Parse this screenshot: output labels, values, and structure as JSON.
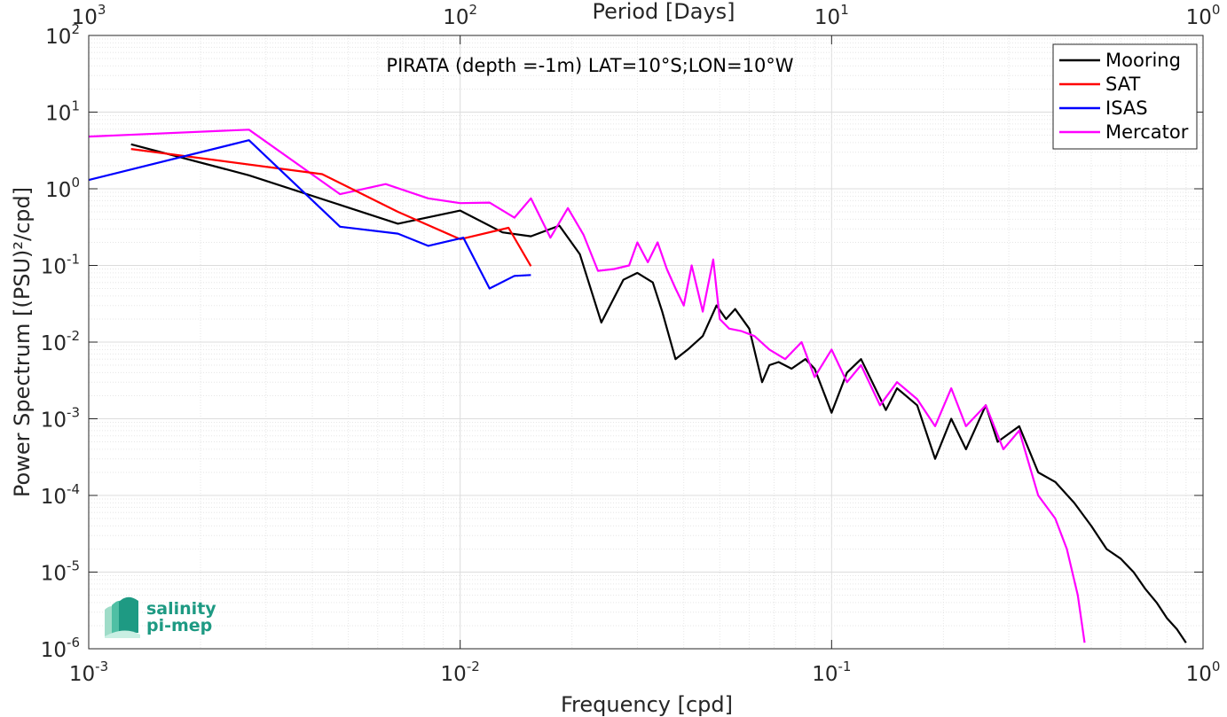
{
  "chart_data": {
    "type": "line",
    "title": "PIRATA (depth =-1m) LAT=10°S;LON=10°W",
    "xlabel": "Frequency [cpd]",
    "ylabel": "Power Spectrum [(PSU)²/cpd]",
    "top_xlabel": "Period [Days]",
    "x_scale": "log",
    "y_scale": "log",
    "xlim": [
      0.001,
      1
    ],
    "ylim": [
      1e-06,
      100
    ],
    "grid": true,
    "legend_position": "top-right",
    "x_ticks": [
      {
        "base": "10",
        "exp": "-3"
      },
      {
        "base": "10",
        "exp": "-2"
      },
      {
        "base": "10",
        "exp": "-1"
      },
      {
        "base": "10",
        "exp": "0"
      }
    ],
    "top_ticks": [
      {
        "base": "10",
        "exp": "3"
      },
      {
        "base": "10",
        "exp": "2"
      },
      {
        "base": "10",
        "exp": "1"
      },
      {
        "base": "10",
        "exp": "0"
      }
    ],
    "y_ticks": [
      {
        "base": "10",
        "exp": "2"
      },
      {
        "base": "10",
        "exp": "1"
      },
      {
        "base": "10",
        "exp": "0"
      },
      {
        "base": "10",
        "exp": "-1"
      },
      {
        "base": "10",
        "exp": "-2"
      },
      {
        "base": "10",
        "exp": "-3"
      },
      {
        "base": "10",
        "exp": "-4"
      },
      {
        "base": "10",
        "exp": "-5"
      },
      {
        "base": "10",
        "exp": "-6"
      }
    ],
    "series": [
      {
        "name": "Mooring",
        "color": "#000000",
        "x": [
          0.0013,
          0.0027,
          0.0068,
          0.01,
          0.013,
          0.0155,
          0.0185,
          0.021,
          0.024,
          0.0275,
          0.03,
          0.033,
          0.035,
          0.038,
          0.041,
          0.045,
          0.049,
          0.052,
          0.055,
          0.06,
          0.065,
          0.068,
          0.072,
          0.078,
          0.085,
          0.09,
          0.1,
          0.11,
          0.12,
          0.14,
          0.15,
          0.17,
          0.19,
          0.21,
          0.23,
          0.26,
          0.28,
          0.32,
          0.36,
          0.4,
          0.45,
          0.5,
          0.55,
          0.6,
          0.65,
          0.7,
          0.75,
          0.8,
          0.85,
          0.9
        ],
        "y": [
          3.8,
          1.5,
          0.35,
          0.52,
          0.27,
          0.24,
          0.33,
          0.14,
          0.018,
          0.065,
          0.08,
          0.06,
          0.025,
          0.006,
          0.008,
          0.012,
          0.03,
          0.02,
          0.027,
          0.015,
          0.003,
          0.005,
          0.0055,
          0.0045,
          0.006,
          0.0045,
          0.0012,
          0.004,
          0.006,
          0.0013,
          0.0025,
          0.0015,
          0.0003,
          0.001,
          0.0004,
          0.0015,
          0.0005,
          0.0008,
          0.0002,
          0.00015,
          8e-05,
          4e-05,
          2e-05,
          1.5e-05,
          1e-05,
          6e-06,
          4e-06,
          2.5e-06,
          1.8e-06,
          1.2e-06
        ]
      },
      {
        "name": "SAT",
        "color": "#ff0000",
        "x": [
          0.0013,
          0.00425,
          0.0068,
          0.01,
          0.0135,
          0.0155
        ],
        "y": [
          3.3,
          1.55,
          0.5,
          0.22,
          0.31,
          0.098
        ]
      },
      {
        "name": "ISAS",
        "color": "#0000ff",
        "x": [
          0.001,
          0.0027,
          0.00475,
          0.0068,
          0.0082,
          0.0102,
          0.012,
          0.014,
          0.0155
        ],
        "y": [
          1.3,
          4.3,
          0.32,
          0.26,
          0.18,
          0.23,
          0.05,
          0.073,
          0.075
        ]
      },
      {
        "name": "Mercator",
        "color": "#ff00ff",
        "x": [
          0.001,
          0.0027,
          0.00475,
          0.0063,
          0.0082,
          0.01,
          0.012,
          0.014,
          0.0155,
          0.0175,
          0.0195,
          0.0215,
          0.0235,
          0.026,
          0.0285,
          0.03,
          0.032,
          0.034,
          0.036,
          0.038,
          0.04,
          0.042,
          0.045,
          0.048,
          0.05,
          0.053,
          0.057,
          0.062,
          0.068,
          0.075,
          0.083,
          0.09,
          0.1,
          0.11,
          0.12,
          0.135,
          0.15,
          0.17,
          0.19,
          0.21,
          0.23,
          0.26,
          0.29,
          0.32,
          0.36,
          0.4,
          0.43,
          0.46,
          0.48
        ],
        "y": [
          4.8,
          5.9,
          0.85,
          1.15,
          0.75,
          0.65,
          0.66,
          0.42,
          0.75,
          0.23,
          0.56,
          0.25,
          0.085,
          0.09,
          0.1,
          0.2,
          0.11,
          0.2,
          0.09,
          0.05,
          0.03,
          0.1,
          0.025,
          0.12,
          0.02,
          0.015,
          0.014,
          0.012,
          0.008,
          0.006,
          0.01,
          0.0035,
          0.008,
          0.003,
          0.005,
          0.0015,
          0.003,
          0.0018,
          0.0008,
          0.0025,
          0.0008,
          0.0015,
          0.0004,
          0.0007,
          0.0001,
          5e-05,
          2e-05,
          5e-06,
          1.2e-06
        ]
      }
    ]
  },
  "logo": {
    "line1": "salinity",
    "line2": "pi-mep"
  }
}
